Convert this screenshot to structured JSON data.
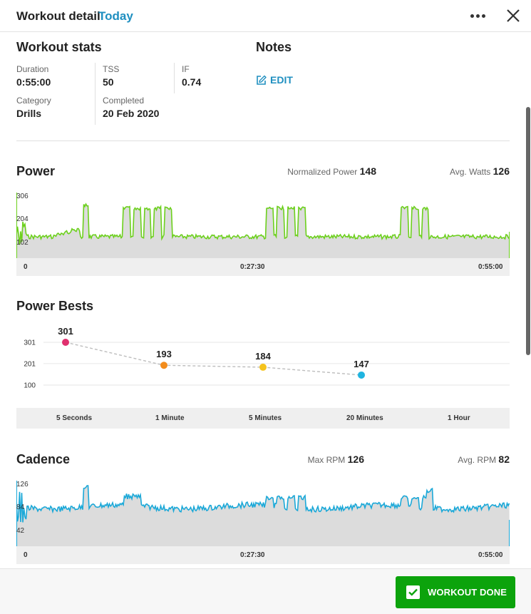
{
  "header": {
    "title": "Workout detail",
    "date": "Today"
  },
  "stats": {
    "title": "Workout stats",
    "duration": {
      "label": "Duration",
      "value": "0:55:00"
    },
    "tss": {
      "label": "TSS",
      "value": "50"
    },
    "if": {
      "label": "IF",
      "value": "0.74"
    },
    "category": {
      "label": "Category",
      "value": "Drills"
    },
    "completed": {
      "label": "Completed",
      "value": "20 Feb 2020"
    }
  },
  "notes": {
    "title": "Notes",
    "edit_label": "EDIT"
  },
  "power": {
    "title": "Power",
    "normalized_label": "Normalized Power",
    "normalized_value": "148",
    "avg_label": "Avg. Watts",
    "avg_value": "126",
    "y_ticks": [
      "306",
      "204",
      "102"
    ],
    "x_ticks": [
      "0",
      "0:27:30",
      "0:55:00"
    ],
    "color": "#6cd01c"
  },
  "power_bests": {
    "title": "Power Bests",
    "y_ticks": [
      "301",
      "201",
      "100"
    ],
    "categories": [
      "5 Seconds",
      "1 Minute",
      "5 Minutes",
      "20 Minutes",
      "1 Hour"
    ],
    "points": [
      {
        "label": "301",
        "value": 301,
        "color": "#e0306e"
      },
      {
        "label": "193",
        "value": 193,
        "color": "#f28c1c"
      },
      {
        "label": "184",
        "value": 184,
        "color": "#f5c31c"
      },
      {
        "label": "147",
        "value": 147,
        "color": "#1fb4e0"
      }
    ]
  },
  "cadence": {
    "title": "Cadence",
    "max_label": "Max RPM",
    "max_value": "126",
    "avg_label": "Avg. RPM",
    "avg_value": "82",
    "y_ticks": [
      "126",
      "84",
      "42"
    ],
    "x_ticks": [
      "0",
      "0:27:30",
      "0:55:00"
    ],
    "color": "#1aa8d8"
  },
  "footer": {
    "done_label": "WORKOUT DONE"
  }
}
